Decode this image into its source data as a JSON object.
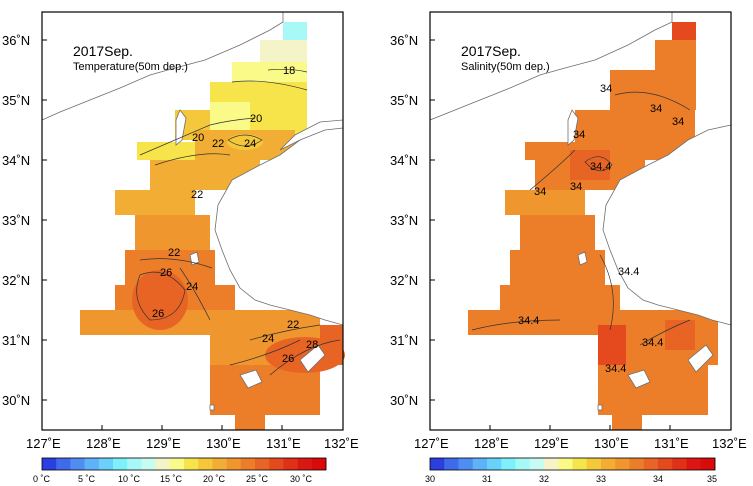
{
  "colors": {
    "temp_palette": [
      "#2b3fe0",
      "#3f6ae8",
      "#4f8ef0",
      "#5fb2f6",
      "#6ad2fa",
      "#7ef0fc",
      "#a8f8f8",
      "#c8fcf0",
      "#f4f4c8",
      "#fafa88",
      "#f7e44a",
      "#f4c83a",
      "#f2ae34",
      "#ef962e",
      "#ec7e2a",
      "#e86424",
      "#e44a1e",
      "#e03018",
      "#dc1612",
      "#d80a0a"
    ],
    "sal_palette": [
      "#2b3fe0",
      "#3f6ae8",
      "#4f8ef0",
      "#5fb2f6",
      "#6ad2fa",
      "#7ef0fc",
      "#a8f8f8",
      "#c8fcf0",
      "#f4f4c8",
      "#fafa88",
      "#f7e44a",
      "#f4c83a",
      "#f2ae34",
      "#ef962e",
      "#ec7e2a",
      "#e86424",
      "#e44a1e",
      "#e03018",
      "#dc1612",
      "#d80a0a"
    ],
    "land_fill": "#ffffff",
    "coast_stroke": "#6e6e6e"
  },
  "left_map": {
    "title": "2017Sep.",
    "subtitle": "Temperature(50m dep.)",
    "x_ticks": [
      "127˚E",
      "128˚E",
      "129˚E",
      "130˚E",
      "131˚E",
      "132˚E"
    ],
    "y_ticks": [
      "36˚N",
      "35˚N",
      "34˚N",
      "33˚N",
      "32˚N",
      "31˚N",
      "30˚N"
    ],
    "contour_labels": [
      "18",
      "20",
      "20",
      "22",
      "24",
      "22",
      "22",
      "26",
      "24",
      "26",
      "22",
      "24",
      "26",
      "28"
    ],
    "colorbar_labels": [
      "0 ˚C",
      "5 ˚C",
      "10 ˚C",
      "15 ˚C",
      "20 ˚C",
      "25 ˚C",
      "30 ˚C"
    ]
  },
  "right_map": {
    "title": "2017Sep.",
    "subtitle": "Salinity(50m dep.)",
    "x_ticks": [
      "127˚E",
      "128˚E",
      "129˚E",
      "130˚E",
      "131˚E",
      "132˚E"
    ],
    "y_ticks": [
      "36˚N",
      "35˚N",
      "34˚N",
      "33˚N",
      "32˚N",
      "31˚N",
      "30˚N"
    ],
    "contour_labels": [
      "34",
      "34",
      "34",
      "34",
      "34",
      "34",
      "34.4",
      "34.4",
      "34.4",
      "34.4",
      "34.4"
    ],
    "colorbar_labels": [
      "30",
      "31",
      "32",
      "33",
      "34",
      "35"
    ]
  }
}
